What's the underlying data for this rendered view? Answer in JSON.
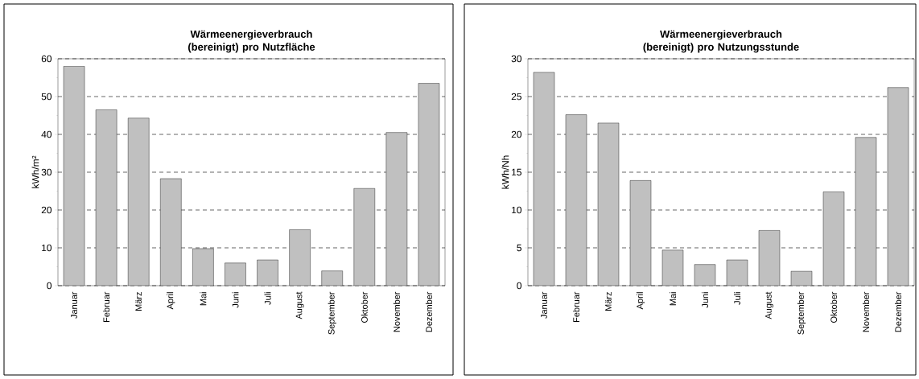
{
  "chart_data": [
    {
      "type": "bar",
      "title": "Wärmeenergieverbrauch (bereinigt) pro Nutzfläche",
      "ylabel": "kWh/m²",
      "categories": [
        "Januar",
        "Februar",
        "März",
        "April",
        "Mai",
        "Juni",
        "Juli",
        "August",
        "September",
        "Oktober",
        "November",
        "Dezember"
      ],
      "values": [
        58.0,
        46.5,
        44.3,
        28.3,
        9.8,
        6.0,
        6.8,
        14.8,
        3.9,
        25.7,
        40.5,
        53.5
      ],
      "color": "#c0c0c0",
      "ylim": [
        0,
        60
      ],
      "yticks": [
        0,
        10,
        20,
        30,
        40,
        50,
        60
      ],
      "grid": "y"
    },
    {
      "type": "bar",
      "title": "Wärmeenergieverbrauch (bereinigt) pro Nutzungsstunde",
      "ylabel": "kWh/Nh",
      "categories": [
        "Januar",
        "Februar",
        "März",
        "April",
        "Mai",
        "Juni",
        "Juli",
        "August",
        "September",
        "Oktober",
        "November",
        "Dezember"
      ],
      "values": [
        28.2,
        22.6,
        21.5,
        13.9,
        4.7,
        2.8,
        3.4,
        7.3,
        1.9,
        12.4,
        19.6,
        26.2
      ],
      "color": "#c0c0c0",
      "ylim": [
        0,
        30
      ],
      "yticks": [
        0,
        5,
        10,
        15,
        20,
        25,
        30
      ],
      "grid": "y"
    }
  ]
}
